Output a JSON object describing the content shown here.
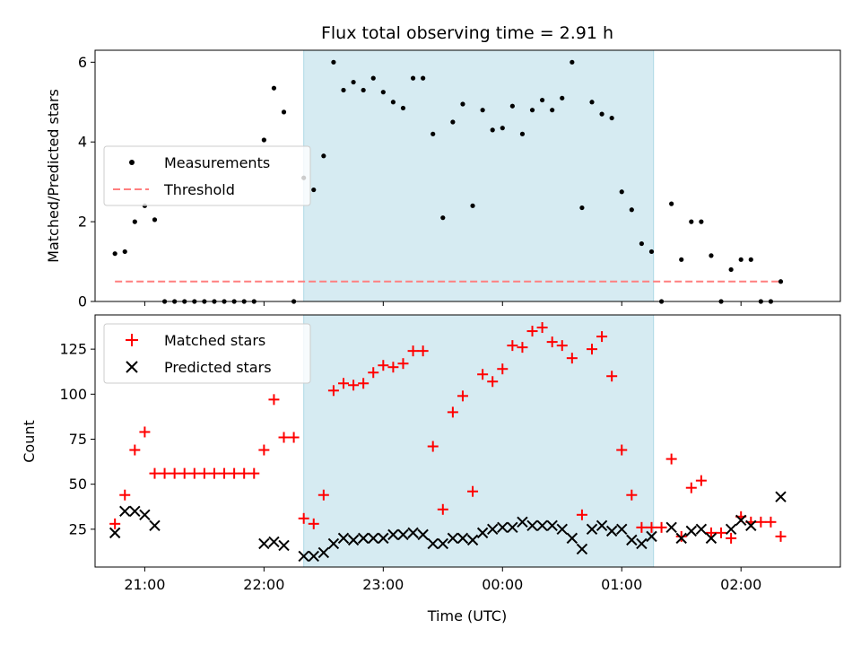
{
  "chart_data": {
    "title": "Flux total observing time = 2.91 h",
    "xlabel": "Time (UTC)",
    "x_tick_labels": [
      "21:00",
      "22:00",
      "23:00",
      "00:00",
      "01:00",
      "02:00"
    ],
    "x_ticks": [
      "21:00",
      "22:00",
      "23:00",
      "00:00",
      "01:00",
      "02:00"
    ],
    "xlim": [
      "20:35",
      "02:50"
    ],
    "shaded_interval": {
      "start": "22:20",
      "end": "01:16",
      "color": "#add8e6"
    },
    "panels": [
      {
        "type": "scatter",
        "ylabel": "Matched/Predicted stars",
        "ylim": [
          0,
          6.3
        ],
        "yticks": [
          0,
          2,
          4,
          6
        ],
        "legend_position": "center-left",
        "series": [
          {
            "name": "Measurements",
            "color": "#000000",
            "marker": "dot",
            "points": [
              [
                "20:45",
                1.2
              ],
              [
                "20:50",
                1.25
              ],
              [
                "20:55",
                2.0
              ],
              [
                "21:00",
                2.4
              ],
              [
                "21:05",
                2.05
              ],
              [
                "21:10",
                0
              ],
              [
                "21:15",
                0
              ],
              [
                "21:20",
                0
              ],
              [
                "21:25",
                0
              ],
              [
                "21:30",
                0
              ],
              [
                "21:35",
                0
              ],
              [
                "21:40",
                0
              ],
              [
                "21:45",
                0
              ],
              [
                "21:50",
                0
              ],
              [
                "21:55",
                0
              ],
              [
                "22:00",
                4.05
              ],
              [
                "22:05",
                5.35
              ],
              [
                "22:10",
                4.75
              ],
              [
                "22:15",
                0
              ],
              [
                "22:20",
                3.1
              ],
              [
                "22:25",
                2.8
              ],
              [
                "22:30",
                3.65
              ],
              [
                "22:35",
                6.0
              ],
              [
                "22:40",
                5.3
              ],
              [
                "22:45",
                5.5
              ],
              [
                "22:50",
                5.3
              ],
              [
                "22:55",
                5.6
              ],
              [
                "23:00",
                5.25
              ],
              [
                "23:05",
                5.0
              ],
              [
                "23:10",
                4.85
              ],
              [
                "23:15",
                5.6
              ],
              [
                "23:20",
                5.6
              ],
              [
                "23:25",
                4.2
              ],
              [
                "23:30",
                2.1
              ],
              [
                "23:35",
                4.5
              ],
              [
                "23:40",
                4.95
              ],
              [
                "23:45",
                2.4
              ],
              [
                "23:50",
                4.8
              ],
              [
                "23:55",
                4.3
              ],
              [
                "00:00",
                4.35
              ],
              [
                "00:05",
                4.9
              ],
              [
                "00:10",
                4.2
              ],
              [
                "00:15",
                4.8
              ],
              [
                "00:20",
                5.05
              ],
              [
                "00:25",
                4.8
              ],
              [
                "00:30",
                5.1
              ],
              [
                "00:35",
                6.0
              ],
              [
                "00:40",
                2.35
              ],
              [
                "00:45",
                5.0
              ],
              [
                "00:50",
                4.7
              ],
              [
                "00:55",
                4.6
              ],
              [
                "01:00",
                2.75
              ],
              [
                "01:05",
                2.3
              ],
              [
                "01:10",
                1.45
              ],
              [
                "01:15",
                1.25
              ],
              [
                "01:20",
                0
              ],
              [
                "01:25",
                2.45
              ],
              [
                "01:30",
                1.05
              ],
              [
                "01:35",
                2.0
              ],
              [
                "01:40",
                2.0
              ],
              [
                "01:45",
                1.15
              ],
              [
                "01:50",
                0
              ],
              [
                "01:55",
                0.8
              ],
              [
                "02:00",
                1.05
              ],
              [
                "02:05",
                1.05
              ],
              [
                "02:10",
                0
              ],
              [
                "02:15",
                0
              ],
              [
                "02:20",
                0.5
              ]
            ]
          },
          {
            "name": "Threshold",
            "color": "#ff7f7f",
            "style": "dashed",
            "y": 0.5,
            "x_range": [
              "20:45",
              "02:20"
            ]
          }
        ]
      },
      {
        "type": "scatter",
        "ylabel": "Count",
        "ylim": [
          4,
          144
        ],
        "yticks": [
          25,
          50,
          75,
          100,
          125
        ],
        "legend_position": "top-left",
        "series": [
          {
            "name": "Matched stars",
            "color": "#ff0000",
            "marker": "plus",
            "points": [
              [
                "20:45",
                28
              ],
              [
                "20:50",
                44
              ],
              [
                "20:55",
                69
              ],
              [
                "21:00",
                79
              ],
              [
                "21:05",
                56
              ],
              [
                "21:10",
                56
              ],
              [
                "21:15",
                56
              ],
              [
                "21:20",
                56
              ],
              [
                "21:25",
                56
              ],
              [
                "21:30",
                56
              ],
              [
                "21:35",
                56
              ],
              [
                "21:40",
                56
              ],
              [
                "21:45",
                56
              ],
              [
                "21:50",
                56
              ],
              [
                "21:55",
                56
              ],
              [
                "22:00",
                69
              ],
              [
                "22:05",
                97
              ],
              [
                "22:10",
                76
              ],
              [
                "22:15",
                76
              ],
              [
                "22:20",
                31
              ],
              [
                "22:25",
                28
              ],
              [
                "22:30",
                44
              ],
              [
                "22:35",
                102
              ],
              [
                "22:40",
                106
              ],
              [
                "22:45",
                105
              ],
              [
                "22:50",
                106
              ],
              [
                "22:55",
                112
              ],
              [
                "23:00",
                116
              ],
              [
                "23:05",
                115
              ],
              [
                "23:10",
                117
              ],
              [
                "23:15",
                124
              ],
              [
                "23:20",
                124
              ],
              [
                "23:25",
                71
              ],
              [
                "23:30",
                36
              ],
              [
                "23:35",
                90
              ],
              [
                "23:40",
                99
              ],
              [
                "23:45",
                46
              ],
              [
                "23:50",
                111
              ],
              [
                "23:55",
                107
              ],
              [
                "00:00",
                114
              ],
              [
                "00:05",
                127
              ],
              [
                "00:10",
                126
              ],
              [
                "00:15",
                135
              ],
              [
                "00:20",
                137
              ],
              [
                "00:25",
                129
              ],
              [
                "00:30",
                127
              ],
              [
                "00:35",
                120
              ],
              [
                "00:40",
                33
              ],
              [
                "00:45",
                125
              ],
              [
                "00:50",
                132
              ],
              [
                "00:55",
                110
              ],
              [
                "01:00",
                69
              ],
              [
                "01:05",
                44
              ],
              [
                "01:10",
                26
              ],
              [
                "01:15",
                26
              ],
              [
                "01:20",
                26
              ],
              [
                "01:25",
                64
              ],
              [
                "01:30",
                21
              ],
              [
                "01:35",
                48
              ],
              [
                "01:40",
                52
              ],
              [
                "01:45",
                23
              ],
              [
                "01:50",
                23
              ],
              [
                "01:55",
                20
              ],
              [
                "02:00",
                32
              ],
              [
                "02:05",
                29
              ],
              [
                "02:10",
                29
              ],
              [
                "02:15",
                29
              ],
              [
                "02:20",
                21
              ]
            ]
          },
          {
            "name": "Predicted stars",
            "color": "#000000",
            "marker": "x",
            "points": [
              [
                "20:45",
                23
              ],
              [
                "20:50",
                35
              ],
              [
                "20:55",
                35
              ],
              [
                "21:00",
                33
              ],
              [
                "21:05",
                27
              ],
              [
                "22:00",
                17
              ],
              [
                "22:05",
                18
              ],
              [
                "22:10",
                16
              ],
              [
                "22:20",
                10
              ],
              [
                "22:25",
                10
              ],
              [
                "22:30",
                12
              ],
              [
                "22:35",
                17
              ],
              [
                "22:40",
                20
              ],
              [
                "22:45",
                19
              ],
              [
                "22:50",
                20
              ],
              [
                "22:55",
                20
              ],
              [
                "23:00",
                20
              ],
              [
                "23:05",
                22
              ],
              [
                "23:10",
                22
              ],
              [
                "23:15",
                23
              ],
              [
                "23:20",
                22
              ],
              [
                "23:25",
                17
              ],
              [
                "23:30",
                17
              ],
              [
                "23:35",
                20
              ],
              [
                "23:40",
                20
              ],
              [
                "23:45",
                19
              ],
              [
                "23:50",
                23
              ],
              [
                "23:55",
                25
              ],
              [
                "00:00",
                26
              ],
              [
                "00:05",
                26
              ],
              [
                "00:10",
                29
              ],
              [
                "00:15",
                27
              ],
              [
                "00:20",
                27
              ],
              [
                "00:25",
                27
              ],
              [
                "00:30",
                25
              ],
              [
                "00:35",
                20
              ],
              [
                "00:40",
                14
              ],
              [
                "00:45",
                25
              ],
              [
                "00:50",
                27
              ],
              [
                "00:55",
                24
              ],
              [
                "01:00",
                25
              ],
              [
                "01:05",
                19
              ],
              [
                "01:10",
                17
              ],
              [
                "01:15",
                21
              ],
              [
                "01:25",
                26
              ],
              [
                "01:30",
                20
              ],
              [
                "01:35",
                24
              ],
              [
                "01:40",
                25
              ],
              [
                "01:45",
                20
              ],
              [
                "01:55",
                25
              ],
              [
                "02:00",
                30
              ],
              [
                "02:05",
                27
              ],
              [
                "02:20",
                43
              ]
            ]
          }
        ]
      }
    ]
  }
}
